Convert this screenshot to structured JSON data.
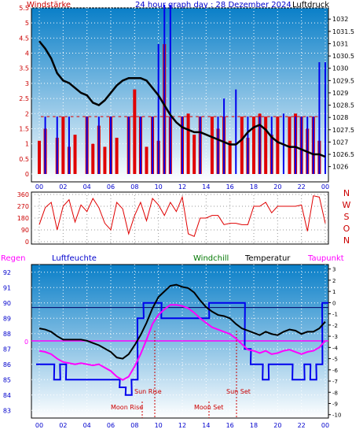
{
  "header": {
    "wind_label": "Windstärke",
    "title": "24 hour graph day : 28 Dezember 2024",
    "pressure_label": "Luftdruck"
  },
  "middle": {
    "compass_letters": [
      "N",
      "W",
      "S",
      "O",
      "N"
    ]
  },
  "bottom_header": {
    "rain": "Regen",
    "humidity": "Luftfeuchte",
    "windchill": "Windchill",
    "temperature": "Temperatur",
    "dewpoint": "Taupunkt"
  },
  "annotations": {
    "sun_rise": "Sun Rise",
    "sun_set": "Sun Set",
    "moon_rise": "Moon Rise",
    "moon_set": "Moon Set",
    "rain_zero": "0"
  },
  "colors": {
    "header_red": "#cc0000",
    "title_blue": "#0000cc",
    "windchill_green": "#007700",
    "dewpoint_magenta": "#ff00ff",
    "gradient_top": "#0a7fc8",
    "gradient_bottom": "#ffffff"
  },
  "chart_data": [
    {
      "type": "line",
      "name": "wind-pressure",
      "x_ticks": [
        "00",
        "02",
        "04",
        "06",
        "08",
        "10",
        "12",
        "14",
        "16",
        "18",
        "20",
        "22",
        "00"
      ],
      "left_ticks": [
        "5.5",
        "5",
        "4.5",
        "4",
        "3.5",
        "3",
        "2.5",
        "2",
        "1.5",
        "1",
        "0.5",
        "0"
      ],
      "right_ticks": [
        "1032",
        "1031.5",
        "1031",
        "1030.5",
        "1030",
        "1029.5",
        "1029",
        "1028.5",
        "1028",
        "1027.5",
        "1027",
        "1026.5",
        "1026"
      ],
      "ylim_left": [
        0,
        5.5
      ],
      "ylim_right": [
        1025.7,
        1032.2
      ],
      "pressure": [
        [
          0,
          1031.1
        ],
        [
          1,
          1030.8
        ],
        [
          2,
          1030.4
        ],
        [
          3,
          1029.8
        ],
        [
          4,
          1029.5
        ],
        [
          5,
          1029.4
        ],
        [
          6,
          1029.2
        ],
        [
          7,
          1029.0
        ],
        [
          8,
          1028.9
        ],
        [
          9,
          1028.6
        ],
        [
          10,
          1028.5
        ],
        [
          11,
          1028.7
        ],
        [
          12,
          1029.0
        ],
        [
          13,
          1029.3
        ],
        [
          14,
          1029.5
        ],
        [
          15,
          1029.6
        ],
        [
          16,
          1029.6
        ],
        [
          17,
          1029.6
        ],
        [
          18,
          1029.5
        ],
        [
          19,
          1029.2
        ],
        [
          20,
          1028.9
        ],
        [
          21,
          1028.5
        ],
        [
          22,
          1028.1
        ],
        [
          23,
          1027.8
        ],
        [
          24,
          1027.6
        ],
        [
          25,
          1027.5
        ],
        [
          26,
          1027.4
        ],
        [
          27,
          1027.4
        ],
        [
          28,
          1027.3
        ],
        [
          29,
          1027.2
        ],
        [
          30,
          1027.1
        ],
        [
          31,
          1027.0
        ],
        [
          32,
          1026.9
        ],
        [
          33,
          1026.9
        ],
        [
          34,
          1027.1
        ],
        [
          35,
          1027.4
        ],
        [
          36,
          1027.6
        ],
        [
          37,
          1027.7
        ],
        [
          38,
          1027.5
        ],
        [
          39,
          1027.2
        ],
        [
          40,
          1027.0
        ],
        [
          41,
          1026.9
        ],
        [
          42,
          1026.8
        ],
        [
          43,
          1026.8
        ],
        [
          44,
          1026.7
        ],
        [
          45,
          1026.6
        ],
        [
          46,
          1026.5
        ],
        [
          47,
          1026.5
        ],
        [
          48,
          1026.4
        ]
      ],
      "wind": [
        [
          0,
          1.1
        ],
        [
          1,
          1.5
        ],
        [
          2,
          0
        ],
        [
          3,
          1.2
        ],
        [
          4,
          1.9
        ],
        [
          5,
          0.9
        ],
        [
          6,
          1.3
        ],
        [
          7,
          0
        ],
        [
          8,
          1.9
        ],
        [
          9,
          1.0
        ],
        [
          10,
          1.6
        ],
        [
          11,
          0.9
        ],
        [
          12,
          1.9
        ],
        [
          13,
          1.2
        ],
        [
          14,
          0
        ],
        [
          15,
          1.9
        ],
        [
          16,
          2.8
        ],
        [
          17,
          1.9
        ],
        [
          18,
          0.9
        ],
        [
          19,
          1.9
        ],
        [
          20,
          1.1
        ],
        [
          21,
          4.3
        ],
        [
          22,
          1.9
        ],
        [
          23,
          0
        ],
        [
          24,
          1.9
        ],
        [
          25,
          2.0
        ],
        [
          26,
          1.3
        ],
        [
          27,
          1.9
        ],
        [
          28,
          0
        ],
        [
          29,
          1.9
        ],
        [
          30,
          1.5
        ],
        [
          31,
          1.9
        ],
        [
          32,
          1.1
        ],
        [
          33,
          0
        ],
        [
          34,
          1.9
        ],
        [
          35,
          1.2
        ],
        [
          36,
          1.9
        ],
        [
          37,
          2.0
        ],
        [
          38,
          1.9
        ],
        [
          39,
          1.3
        ],
        [
          40,
          1.9
        ],
        [
          41,
          0
        ],
        [
          42,
          1.9
        ],
        [
          43,
          2.0
        ],
        [
          44,
          1.9
        ],
        [
          45,
          1.5
        ],
        [
          46,
          1.9
        ],
        [
          47,
          1.1
        ]
      ],
      "gust": [
        [
          1,
          1.9
        ],
        [
          3,
          1.9
        ],
        [
          5,
          1.9
        ],
        [
          8,
          1.9
        ],
        [
          10,
          1.9
        ],
        [
          12,
          1.9
        ],
        [
          15,
          1.9
        ],
        [
          17,
          1.9
        ],
        [
          19,
          1.9
        ],
        [
          20,
          4.3
        ],
        [
          21,
          5.6
        ],
        [
          22,
          5.6
        ],
        [
          24,
          1.9
        ],
        [
          27,
          1.9
        ],
        [
          30,
          1.9
        ],
        [
          31,
          2.5
        ],
        [
          33,
          2.8
        ],
        [
          35,
          1.9
        ],
        [
          37,
          1.9
        ],
        [
          39,
          1.9
        ],
        [
          41,
          2.0
        ],
        [
          43,
          1.9
        ],
        [
          44,
          1.9
        ],
        [
          45,
          1.9
        ],
        [
          46,
          1.9
        ],
        [
          47,
          3.7
        ],
        [
          48,
          3.7
        ]
      ]
    },
    {
      "type": "line",
      "name": "wind-direction",
      "y_ticks": [
        "360",
        "270",
        "180",
        "90",
        "0"
      ],
      "ylim": [
        0,
        360
      ],
      "direction": [
        [
          0,
          130
        ],
        [
          1,
          260
        ],
        [
          2,
          300
        ],
        [
          3,
          90
        ],
        [
          4,
          270
        ],
        [
          5,
          320
        ],
        [
          6,
          150
        ],
        [
          7,
          280
        ],
        [
          8,
          230
        ],
        [
          9,
          330
        ],
        [
          10,
          260
        ],
        [
          11,
          140
        ],
        [
          12,
          90
        ],
        [
          13,
          300
        ],
        [
          14,
          250
        ],
        [
          15,
          60
        ],
        [
          16,
          200
        ],
        [
          17,
          300
        ],
        [
          18,
          160
        ],
        [
          19,
          330
        ],
        [
          20,
          280
        ],
        [
          21,
          200
        ],
        [
          22,
          300
        ],
        [
          23,
          230
        ],
        [
          24,
          340
        ],
        [
          25,
          60
        ],
        [
          26,
          40
        ],
        [
          27,
          180
        ],
        [
          28,
          180
        ],
        [
          29,
          200
        ],
        [
          30,
          200
        ],
        [
          31,
          130
        ],
        [
          32,
          140
        ],
        [
          33,
          140
        ],
        [
          34,
          130
        ],
        [
          35,
          130
        ],
        [
          36,
          270
        ],
        [
          37,
          270
        ],
        [
          38,
          300
        ],
        [
          39,
          220
        ],
        [
          40,
          270
        ],
        [
          41,
          270
        ],
        [
          42,
          270
        ],
        [
          43,
          270
        ],
        [
          44,
          280
        ],
        [
          45,
          80
        ],
        [
          46,
          350
        ],
        [
          47,
          340
        ],
        [
          48,
          140
        ]
      ]
    },
    {
      "type": "line",
      "name": "temperature-humidity",
      "left_ticks": [
        "92",
        "91",
        "90",
        "89",
        "88",
        "87",
        "86",
        "85",
        "84",
        "83"
      ],
      "right_ticks": [
        "3",
        "2",
        "1",
        "0",
        "-1",
        "-2",
        "-3",
        "-4",
        "-5",
        "-6",
        "-7",
        "-8",
        "-9",
        "-10"
      ],
      "ylim_left": [
        82.5,
        92.5
      ],
      "ylim_right": [
        -10.3,
        3.4
      ],
      "x_ticks": [
        "00",
        "02",
        "04",
        "06",
        "08",
        "10",
        "12",
        "14",
        "16",
        "18",
        "20",
        "22",
        "00"
      ],
      "temperature": [
        [
          0,
          -2.3
        ],
        [
          1,
          -2.4
        ],
        [
          2,
          -2.6
        ],
        [
          3,
          -3.0
        ],
        [
          4,
          -3.3
        ],
        [
          5,
          -3.3
        ],
        [
          6,
          -3.3
        ],
        [
          7,
          -3.3
        ],
        [
          8,
          -3.4
        ],
        [
          9,
          -3.6
        ],
        [
          10,
          -3.8
        ],
        [
          11,
          -4.1
        ],
        [
          12,
          -4.4
        ],
        [
          13,
          -4.9
        ],
        [
          14,
          -5.0
        ],
        [
          15,
          -4.6
        ],
        [
          16,
          -3.8
        ],
        [
          17,
          -2.9
        ],
        [
          18,
          -1.8
        ],
        [
          19,
          -0.5
        ],
        [
          20,
          0.5
        ],
        [
          21,
          1.0
        ],
        [
          22,
          1.5
        ],
        [
          23,
          1.6
        ],
        [
          24,
          1.4
        ],
        [
          25,
          1.3
        ],
        [
          26,
          0.9
        ],
        [
          27,
          0.2
        ],
        [
          28,
          -0.4
        ],
        [
          29,
          -0.8
        ],
        [
          30,
          -1.1
        ],
        [
          31,
          -1.2
        ],
        [
          32,
          -1.4
        ],
        [
          33,
          -1.9
        ],
        [
          34,
          -2.3
        ],
        [
          35,
          -2.5
        ],
        [
          36,
          -2.7
        ],
        [
          37,
          -2.9
        ],
        [
          38,
          -2.6
        ],
        [
          39,
          -2.8
        ],
        [
          40,
          -2.9
        ],
        [
          41,
          -2.6
        ],
        [
          42,
          -2.4
        ],
        [
          43,
          -2.5
        ],
        [
          44,
          -2.8
        ],
        [
          45,
          -2.6
        ],
        [
          46,
          -2.6
        ],
        [
          47,
          -2.3
        ],
        [
          48,
          -1.7
        ]
      ],
      "dewpoint": [
        [
          0,
          -4.3
        ],
        [
          1,
          -4.4
        ],
        [
          2,
          -4.6
        ],
        [
          3,
          -5.0
        ],
        [
          4,
          -5.3
        ],
        [
          5,
          -5.4
        ],
        [
          6,
          -5.5
        ],
        [
          7,
          -5.4
        ],
        [
          8,
          -5.5
        ],
        [
          9,
          -5.6
        ],
        [
          10,
          -5.5
        ],
        [
          11,
          -5.8
        ],
        [
          12,
          -6.1
        ],
        [
          13,
          -6.6
        ],
        [
          14,
          -6.9
        ],
        [
          15,
          -6.6
        ],
        [
          16,
          -5.7
        ],
        [
          17,
          -4.6
        ],
        [
          18,
          -3.3
        ],
        [
          19,
          -1.9
        ],
        [
          20,
          -1.1
        ],
        [
          21,
          -0.6
        ],
        [
          22,
          -0.2
        ],
        [
          23,
          -0.2
        ],
        [
          24,
          -0.3
        ],
        [
          25,
          -0.5
        ],
        [
          26,
          -0.9
        ],
        [
          27,
          -1.4
        ],
        [
          28,
          -1.8
        ],
        [
          29,
          -2.2
        ],
        [
          30,
          -2.4
        ],
        [
          31,
          -2.6
        ],
        [
          32,
          -2.8
        ],
        [
          33,
          -3.2
        ],
        [
          34,
          -3.7
        ],
        [
          35,
          -4.2
        ],
        [
          36,
          -4.3
        ],
        [
          37,
          -4.5
        ],
        [
          38,
          -4.3
        ],
        [
          39,
          -4.6
        ],
        [
          40,
          -4.5
        ],
        [
          41,
          -4.3
        ],
        [
          42,
          -4.2
        ],
        [
          43,
          -4.4
        ],
        [
          44,
          -4.6
        ],
        [
          45,
          -4.4
        ],
        [
          46,
          -4.3
        ],
        [
          47,
          -4.0
        ],
        [
          48,
          -3.4
        ]
      ],
      "humidity": [
        [
          0,
          86.0
        ],
        [
          1,
          86.0
        ],
        [
          2,
          86.0
        ],
        [
          3,
          85.0
        ],
        [
          4,
          86.0
        ],
        [
          5,
          85.0
        ],
        [
          6,
          85.0
        ],
        [
          7,
          85.0
        ],
        [
          8,
          85.0
        ],
        [
          9,
          85.0
        ],
        [
          10,
          85.0
        ],
        [
          11,
          85.0
        ],
        [
          12,
          85.0
        ],
        [
          13,
          85.0
        ],
        [
          14,
          84.5
        ],
        [
          15,
          84.0
        ],
        [
          16,
          85.0
        ],
        [
          17,
          89.0
        ],
        [
          18,
          90.0
        ],
        [
          19,
          90.0
        ],
        [
          20,
          90.0
        ],
        [
          21,
          89.0
        ],
        [
          22,
          89.0
        ],
        [
          23,
          89.0
        ],
        [
          24,
          89.0
        ],
        [
          25,
          89.0
        ],
        [
          26,
          89.0
        ],
        [
          27,
          89.0
        ],
        [
          28,
          89.0
        ],
        [
          29,
          90.0
        ],
        [
          30,
          90.0
        ],
        [
          31,
          90.0
        ],
        [
          32,
          90.0
        ],
        [
          33,
          90.0
        ],
        [
          34,
          90.0
        ],
        [
          35,
          87.0
        ],
        [
          36,
          86.0
        ],
        [
          37,
          86.0
        ],
        [
          38,
          85.0
        ],
        [
          39,
          86.0
        ],
        [
          40,
          86.0
        ],
        [
          41,
          86.0
        ],
        [
          42,
          86.0
        ],
        [
          43,
          85.0
        ],
        [
          44,
          85.0
        ],
        [
          45,
          86.0
        ],
        [
          46,
          85.0
        ],
        [
          47,
          86.0
        ],
        [
          48,
          90.0
        ]
      ],
      "humidity_reference": 89.7,
      "rain": 0
    }
  ]
}
